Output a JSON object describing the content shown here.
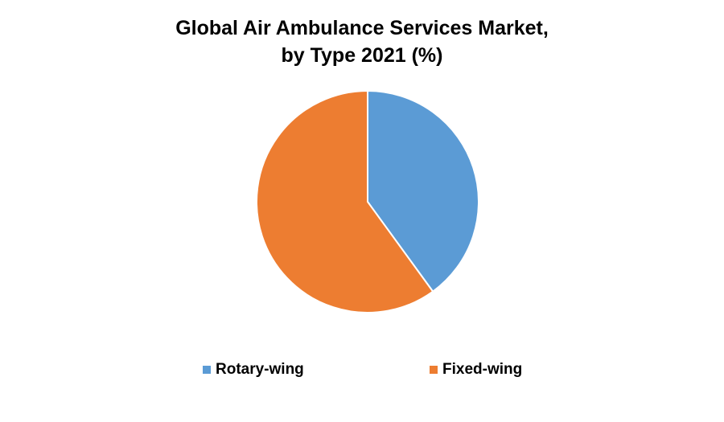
{
  "chart_data": {
    "type": "pie",
    "title": "Global Air Ambulance Services Market, by Type 2021 (%)",
    "title_lines": [
      "Global Air Ambulance Services Market,",
      "by Type 2021 (%)"
    ],
    "categories": [
      "Rotary-wing",
      "Fixed-wing"
    ],
    "values": [
      40,
      60
    ],
    "colors": [
      "#5b9bd5",
      "#ed7d31"
    ],
    "slice_border_color": "#ffffff",
    "start_angle": "12 o'clock",
    "direction": "clockwise",
    "legend_position": "bottom"
  }
}
